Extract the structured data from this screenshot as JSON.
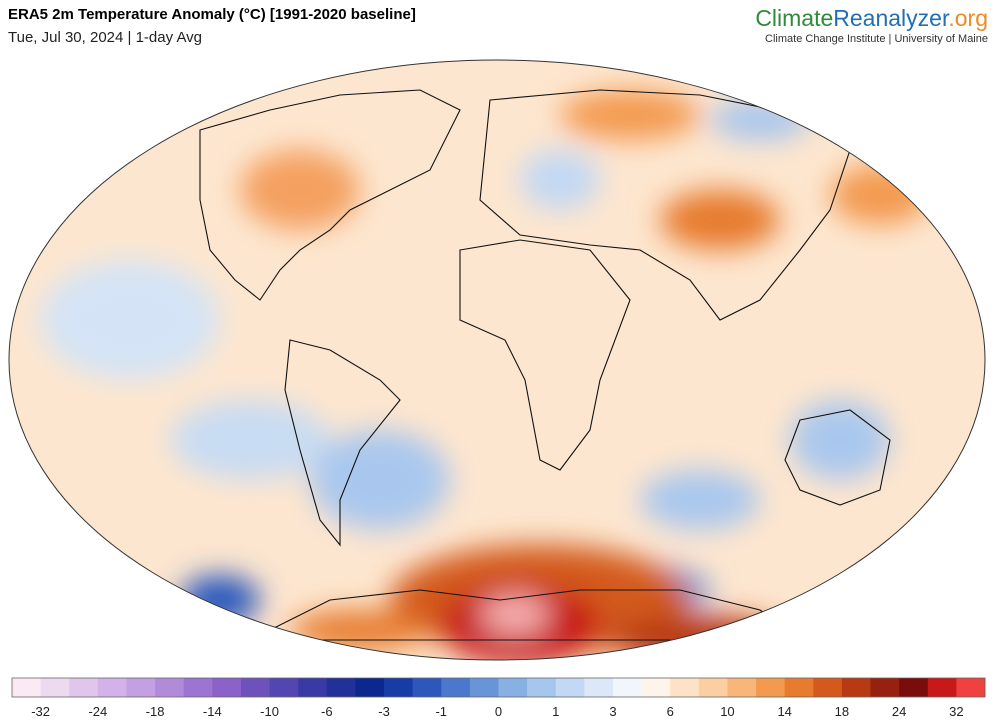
{
  "header": {
    "title": "ERA5 2m Temperature Anomaly (°C) [1991-2020 baseline]",
    "subtitle": "Tue, Jul 30, 2024 | 1-day Avg"
  },
  "logo": {
    "parts": [
      "Climate",
      "Reanalyzer",
      ".org"
    ],
    "colors": [
      "#2e8b3a",
      "#1f6fb2",
      "#f08a24"
    ],
    "tagline": "Climate Change Institute | University of Maine"
  },
  "colorbar": {
    "labels": [
      -32,
      -24,
      -18,
      -14,
      -10,
      -6,
      -3,
      -1,
      0,
      1,
      3,
      6,
      10,
      14,
      18,
      24,
      32
    ],
    "colors": [
      "#fbe9f3",
      "#eedaf0",
      "#e0c6ec",
      "#d2b2e8",
      "#c3a0e2",
      "#b28ada",
      "#9e74d2",
      "#8a62c8",
      "#6e52bc",
      "#5446b2",
      "#3a3aa6",
      "#22309a",
      "#0c2890",
      "#183ca6",
      "#2c58bc",
      "#4a78cc",
      "#6894d8",
      "#88b0e4",
      "#a6c6ee",
      "#c2d8f4",
      "#dce8f8",
      "#f2f6fc",
      "#fff4ea",
      "#fde2c8",
      "#fbcfa2",
      "#f8b67a",
      "#f39a50",
      "#e77b2e",
      "#d35a1c",
      "#b83a12",
      "#98200e",
      "#7a0c0c",
      "#c81818",
      "#f04040"
    ]
  }
}
